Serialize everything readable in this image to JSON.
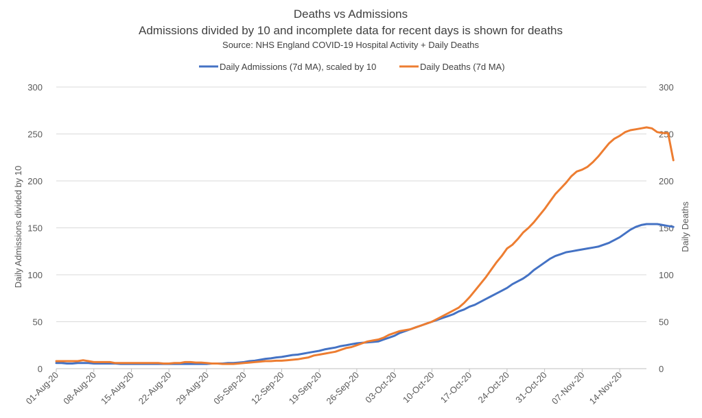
{
  "chart_data": {
    "type": "line",
    "title": "Deaths vs Admissions",
    "subtitle": "Admissions divided by 10 and incomplete data for recent days is shown for deaths",
    "source": "Source: NHS England COVID-19 Hospital Activity + Daily Deaths",
    "ylabel_left": "Daily Admissions divided by 10",
    "ylabel_right": "Daily Deaths",
    "ylim": [
      0,
      300
    ],
    "y_ticks": [
      "0",
      "50",
      "100",
      "150",
      "200",
      "250",
      "300"
    ],
    "legend_position": "top",
    "x_start": "2020-08-01",
    "x_tick_labels": [
      "01-Aug-20",
      "08-Aug-20",
      "15-Aug-20",
      "22-Aug-20",
      "29-Aug-20",
      "05-Sep-20",
      "12-Sep-20",
      "19-Sep-20",
      "26-Sep-20",
      "03-Oct-20",
      "10-Oct-20",
      "17-Oct-20",
      "24-Oct-20",
      "31-Oct-20",
      "07-Nov-20",
      "14-Nov-20"
    ],
    "series": [
      {
        "name": "Daily Admissions (7d MA), scaled by 10",
        "color": "#4472c4",
        "values": [
          6,
          6,
          5.5,
          5.5,
          6,
          6,
          6,
          5.5,
          5.5,
          5.5,
          5.5,
          5.5,
          5,
          5,
          5,
          5,
          5,
          5,
          5,
          5,
          5,
          5,
          5,
          5,
          5,
          5,
          5,
          5,
          5,
          5.5,
          5.5,
          5.5,
          6,
          6,
          6.5,
          7,
          8,
          8.5,
          9.5,
          10.5,
          11,
          12,
          12.5,
          13.5,
          14.5,
          15,
          16,
          17,
          18,
          19,
          20.5,
          21.5,
          22.5,
          24,
          25,
          26,
          27,
          27.5,
          28,
          28.5,
          29,
          31,
          33,
          35,
          38,
          40,
          42,
          44,
          46,
          48,
          50,
          52,
          54,
          56,
          58,
          61,
          63,
          66,
          68,
          71,
          74,
          77,
          80,
          83,
          86,
          90,
          93,
          96,
          100,
          105,
          109,
          113,
          117,
          120,
          122,
          124,
          125,
          126,
          127,
          128,
          129,
          130,
          132,
          134,
          137,
          140,
          144,
          148,
          151,
          153,
          154,
          154,
          154,
          153,
          152,
          151
        ]
      },
      {
        "name": "Daily Deaths (7d MA)",
        "color": "#ed7d31",
        "values": [
          8,
          8,
          8,
          8,
          8,
          9,
          8,
          7,
          7,
          7,
          7,
          6,
          6,
          6,
          6,
          6,
          6,
          6,
          6,
          6,
          5.5,
          5.5,
          6,
          6,
          7,
          7,
          6.5,
          6.5,
          6,
          5.5,
          5.5,
          5,
          5,
          5,
          5.5,
          6,
          6.5,
          7,
          7.5,
          8,
          8,
          8.5,
          8.5,
          9,
          9.5,
          10,
          11,
          12,
          14,
          15,
          16,
          17,
          18,
          20,
          22,
          23,
          25,
          27,
          29,
          30,
          31,
          33,
          36,
          38,
          40,
          41,
          42,
          44,
          46,
          48,
          50,
          53,
          56,
          59,
          62,
          65,
          70,
          76,
          83,
          90,
          97,
          105,
          113,
          120,
          128,
          132,
          138,
          145,
          150,
          156,
          163,
          170,
          178,
          186,
          192,
          198,
          205,
          210,
          212,
          215,
          220,
          226,
          233,
          240,
          245,
          248,
          252,
          254,
          255,
          256,
          257,
          256,
          252,
          251,
          251,
          222
        ]
      }
    ]
  }
}
